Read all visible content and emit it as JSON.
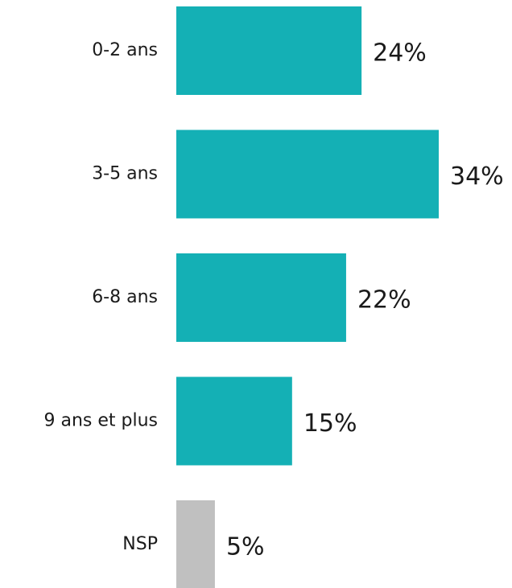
{
  "chart_data": {
    "type": "bar",
    "orientation": "horizontal",
    "categories": [
      "0-2 ans",
      "3-5 ans",
      "6-8 ans",
      "9 ans et plus",
      "NSP"
    ],
    "values": [
      24,
      34,
      22,
      15,
      5
    ],
    "value_labels": [
      "24%",
      "34%",
      "22%",
      "15%",
      "5%"
    ],
    "value_unit": "%",
    "xlim": [
      0,
      34
    ],
    "grid": false,
    "legend": "none",
    "colors": [
      "#14b0b5",
      "#14b0b5",
      "#14b0b5",
      "#14b0b5",
      "#c0c0c0"
    ],
    "title": "",
    "xlabel": "",
    "ylabel": ""
  }
}
